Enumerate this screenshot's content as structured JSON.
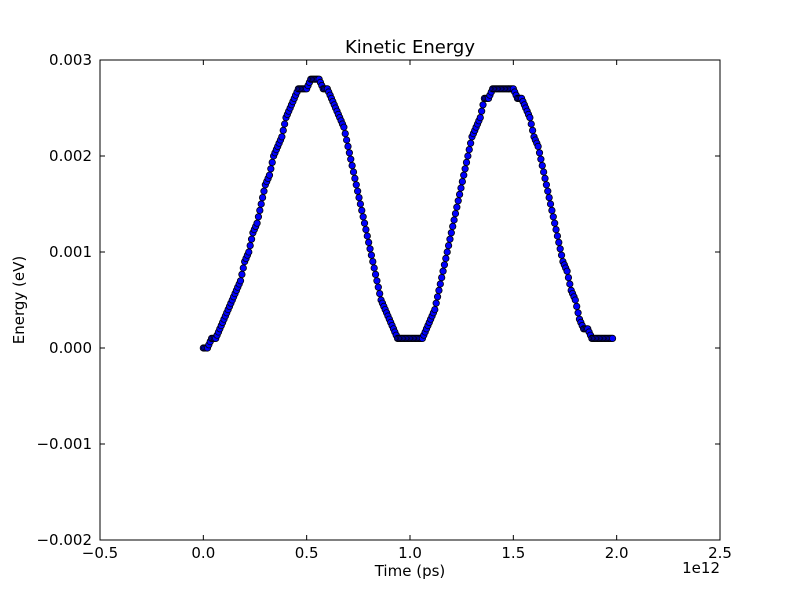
{
  "chart_data": {
    "type": "scatter",
    "title": "Kinetic Energy",
    "xlabel": "Time (ps)",
    "ylabel": "Energy (eV)",
    "x_offset_label": "1e12",
    "xlim": [
      -0.5,
      2.5
    ],
    "ylim": [
      -0.002,
      0.003
    ],
    "xticks": [
      -0.5,
      0.0,
      0.5,
      1.0,
      1.5,
      2.0,
      2.5
    ],
    "xtick_labels": [
      "−0.5",
      "0.0",
      "0.5",
      "1.0",
      "1.5",
      "2.0",
      "2.5"
    ],
    "yticks": [
      -0.002,
      -0.001,
      0.0,
      0.001,
      0.002,
      0.003
    ],
    "ytick_labels": [
      "−0.002",
      "−0.001",
      "0.000",
      "0.001",
      "0.002",
      "0.003"
    ],
    "grid": false,
    "legend": "none",
    "marker_color": "#0000ff",
    "marker_edge_color": "#000000",
    "series": [
      {
        "x": [
          0.0,
          0.02,
          0.04,
          0.06,
          0.08,
          0.1,
          0.12,
          0.14,
          0.16,
          0.18,
          0.2,
          0.22,
          0.24,
          0.26,
          0.28,
          0.3,
          0.32,
          0.34,
          0.36,
          0.38,
          0.4,
          0.42,
          0.44,
          0.46,
          0.48,
          0.5,
          0.52,
          0.54,
          0.56,
          0.58,
          0.6,
          0.62,
          0.64,
          0.66,
          0.68,
          0.7,
          0.72,
          0.74,
          0.76,
          0.78,
          0.8,
          0.82,
          0.84,
          0.86,
          0.88,
          0.9,
          0.92,
          0.94,
          0.96,
          0.98,
          1.0,
          1.02,
          1.04,
          1.06,
          1.08,
          1.1,
          1.12,
          1.14,
          1.16,
          1.18,
          1.2,
          1.22,
          1.24,
          1.26,
          1.28,
          1.3,
          1.32,
          1.34,
          1.36,
          1.38,
          1.4,
          1.42,
          1.44,
          1.46,
          1.48,
          1.5,
          1.52,
          1.54,
          1.56,
          1.58,
          1.6,
          1.62,
          1.64,
          1.66,
          1.68,
          1.7,
          1.72,
          1.74,
          1.76,
          1.78,
          1.8,
          1.82,
          1.84,
          1.86,
          1.88,
          1.9,
          1.92,
          1.94,
          1.96,
          1.98
        ],
        "y": [
          0.0,
          0.0,
          0.0001,
          0.0001,
          0.0002,
          0.0003,
          0.0004,
          0.0005,
          0.0006,
          0.0007,
          0.0009,
          0.001,
          0.0012,
          0.0013,
          0.0015,
          0.0017,
          0.0018,
          0.002,
          0.0021,
          0.0022,
          0.0024,
          0.0025,
          0.0026,
          0.0027,
          0.0027,
          0.0027,
          0.0028,
          0.0028,
          0.0028,
          0.0027,
          0.0027,
          0.0026,
          0.0025,
          0.0024,
          0.0023,
          0.0021,
          0.0019,
          0.0017,
          0.0015,
          0.0013,
          0.0011,
          0.0009,
          0.0007,
          0.0005,
          0.0004,
          0.0003,
          0.0002,
          0.0001,
          0.0001,
          0.0001,
          0.0001,
          0.0001,
          0.0001,
          0.0001,
          0.0002,
          0.0003,
          0.0004,
          0.0006,
          0.0008,
          0.001,
          0.0012,
          0.0014,
          0.0016,
          0.0018,
          0.002,
          0.0022,
          0.0023,
          0.0024,
          0.0026,
          0.0026,
          0.0027,
          0.0027,
          0.0027,
          0.0027,
          0.0027,
          0.0027,
          0.0026,
          0.0026,
          0.0025,
          0.0024,
          0.0022,
          0.0021,
          0.0019,
          0.0017,
          0.0015,
          0.0013,
          0.0011,
          0.0009,
          0.0008,
          0.0006,
          0.0005,
          0.0003,
          0.0002,
          0.0002,
          0.0001,
          0.0001,
          0.0001,
          0.0001,
          0.0001,
          0.0001
        ]
      }
    ]
  }
}
